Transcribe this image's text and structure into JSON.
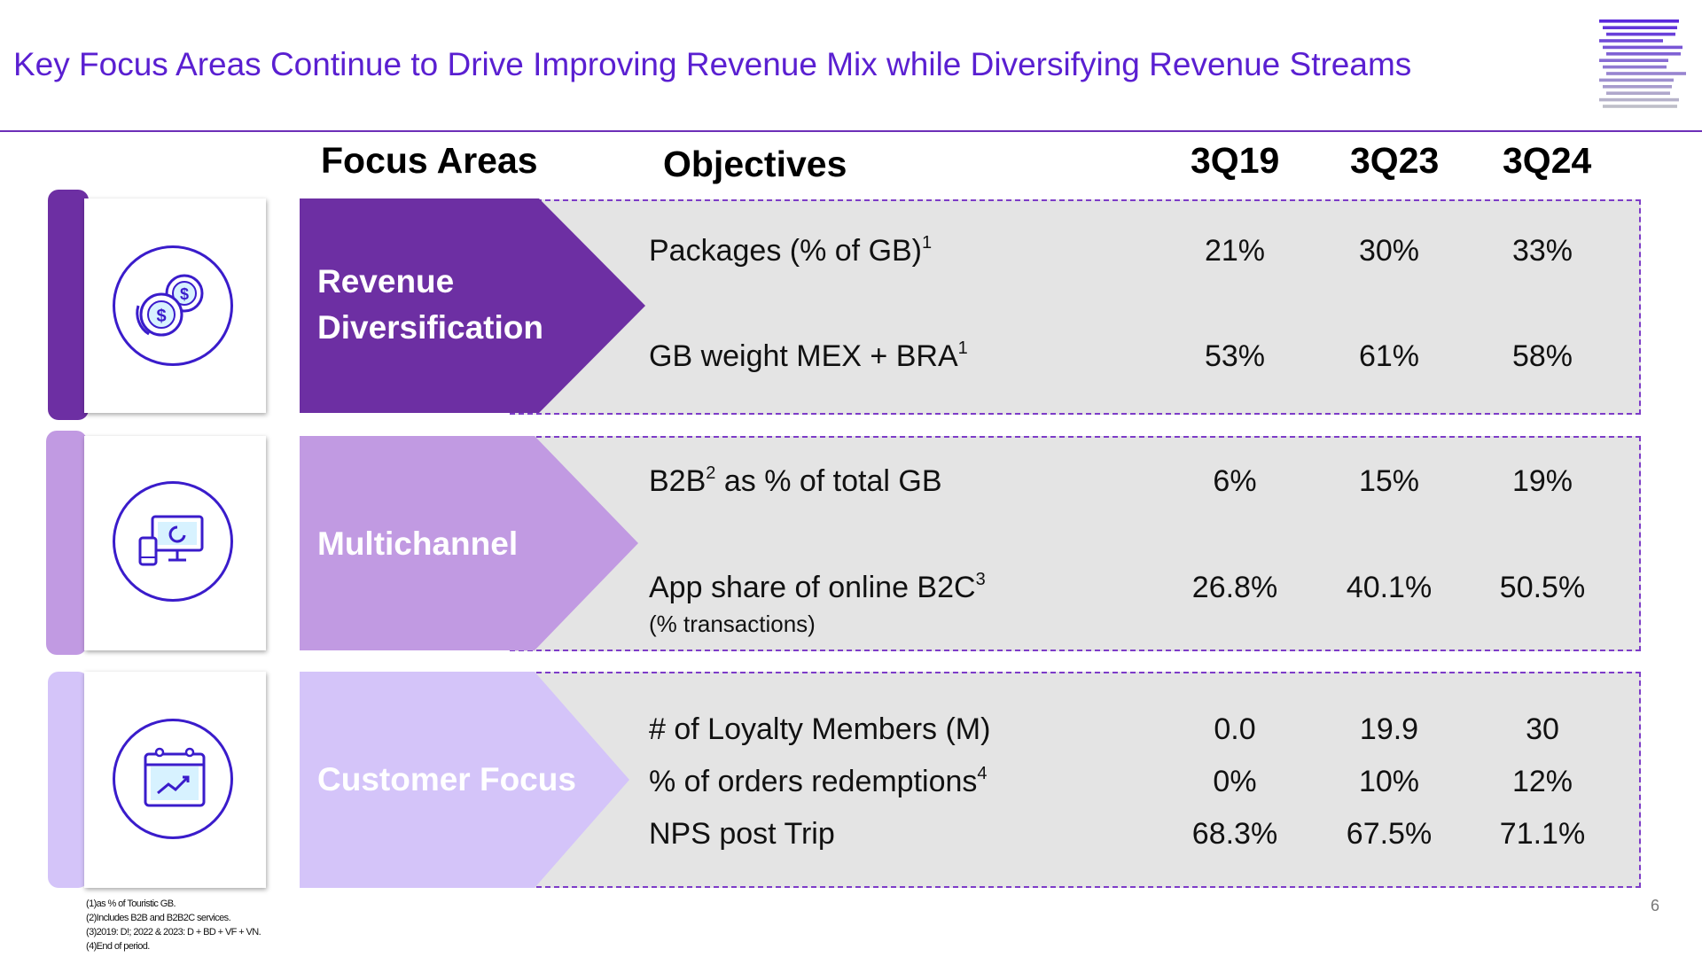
{
  "title": "Key Focus Areas Continue to Drive Improving Revenue Mix while Diversifying Revenue Streams",
  "headers": {
    "focus_areas": "Focus Areas",
    "objectives": "Objectives",
    "col1": "3Q19",
    "col2": "3Q23",
    "col3": "3Q24"
  },
  "colors": {
    "accent": "#5a1fd1",
    "revenue": "#6d2fa3",
    "multichannel": "#c19ae2",
    "customer": "#d4c4f9",
    "panel": "#e4e4e4"
  },
  "sections": [
    {
      "label": "Revenue Diversification",
      "label_lines": [
        "Revenue",
        "Diversification"
      ],
      "icon": "coins-dollar-icon",
      "rows": [
        {
          "objective": "Packages (% of GB)",
          "sup": "1",
          "sub": "",
          "values": [
            "21%",
            "30%",
            "33%"
          ]
        },
        {
          "objective": "GB weight MEX + BRA",
          "sup": "1",
          "sub": "",
          "values": [
            "53%",
            "61%",
            "58%"
          ]
        }
      ]
    },
    {
      "label": "Multichannel",
      "label_lines": [
        "Multichannel"
      ],
      "icon": "devices-icon",
      "rows": [
        {
          "objective": "B2B",
          "sup": "2",
          "suffix": " as % of total GB",
          "sub": "",
          "values": [
            "6%",
            "15%",
            "19%"
          ]
        },
        {
          "objective": "App share of online B2C",
          "sup": "3",
          "sub": "(% transactions)",
          "values": [
            "26.8%",
            "40.1%",
            "50.5%"
          ]
        }
      ]
    },
    {
      "label": "Customer Focus",
      "label_lines": [
        "Customer Focus"
      ],
      "icon": "calendar-chart-icon",
      "rows": [
        {
          "objective": "# of Loyalty Members (M)",
          "sup": "",
          "sub": "",
          "values": [
            "0.0",
            "19.9",
            "30"
          ]
        },
        {
          "objective": "% of orders redemptions",
          "sup": "4",
          "sub": "",
          "values": [
            "0%",
            "10%",
            "12%"
          ]
        },
        {
          "objective": "NPS post Trip",
          "sup": "",
          "sub": "",
          "values": [
            "68.3%",
            "67.5%",
            "71.1%"
          ]
        }
      ]
    }
  ],
  "footnotes": [
    "(1)as % of Touristic GB.",
    "(2)Includes B2B and B2B2C services.",
    "(3)2019: D!; 2022 & 2023: D + BD + VF + VN.",
    "(4)End of period."
  ],
  "page_number": "6"
}
